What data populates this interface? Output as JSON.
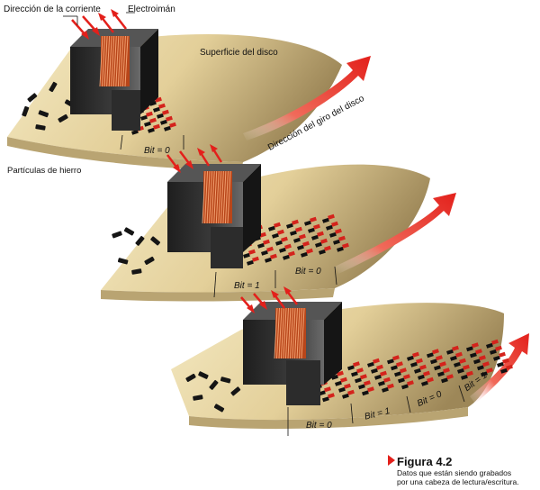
{
  "labels": {
    "current_direction": "Dirección de la corriente",
    "electromagnet": "Electroimán",
    "disk_surface": "Superficie del disco",
    "rotation_direction": "Dirección del giro del disco",
    "iron_particles": "Partículas de hierro"
  },
  "bits": {
    "panel1": [
      "Bit = 0"
    ],
    "panel2": [
      "Bit = 1",
      "Bit = 0"
    ],
    "panel3": [
      "Bit = 0",
      "Bit = 1",
      "Bit = 0",
      "Bit = 1"
    ]
  },
  "caption": {
    "title": "Figura 4.2",
    "text_line1": "Datos que están siendo grabados",
    "text_line2": "por una cabeza de lectura/escritura."
  },
  "colors": {
    "disk_light": "#f3e6b8",
    "disk_dark": "#a08a5a",
    "coil": "#c8541f",
    "head_dark": "#2a2a2a",
    "arrow_red": "#e3201b",
    "particle_red": "#d4231c"
  }
}
